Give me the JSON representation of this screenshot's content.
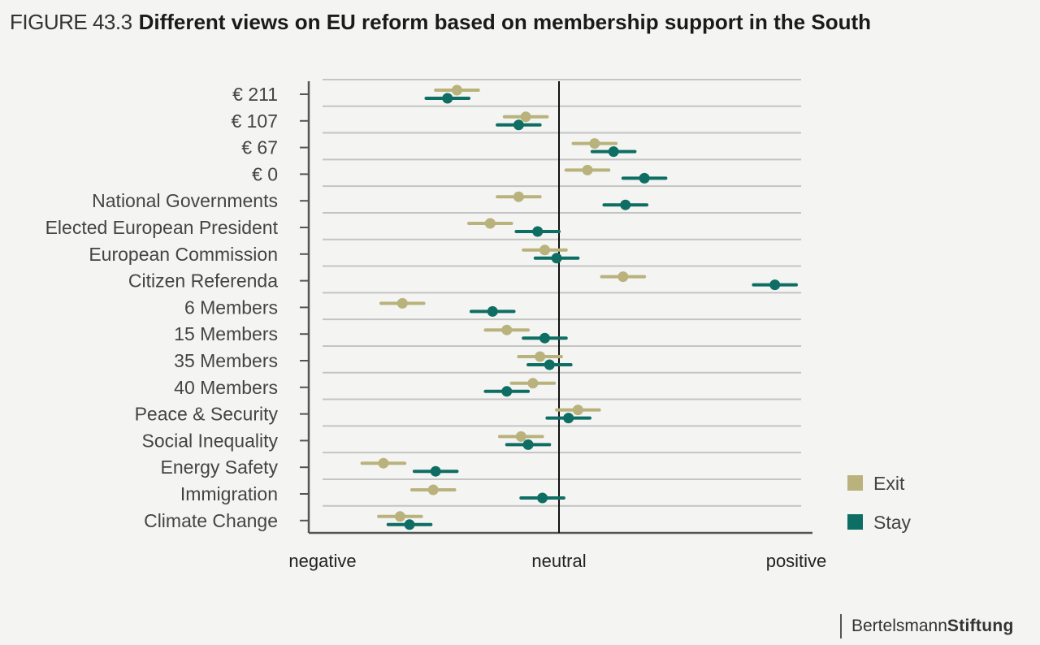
{
  "header": {
    "figure_label": "FIGURE 43.3",
    "title": "Different views on EU reform based on membership support in the South"
  },
  "brand": {
    "part1": "Bertelsmann",
    "part2": "Stiftung"
  },
  "colors": {
    "exit": "#bab27c",
    "stay": "#0f6e64",
    "grid": "#c4c4c4",
    "axis": "#555555"
  },
  "chart_data": {
    "type": "scatter",
    "categories": [
      "€ 211",
      "€ 107",
      "€ 67",
      "€ 0",
      "National Governments",
      "Elected European President",
      "European Commission",
      "Citizen Referenda",
      "6 Members",
      "15 Members",
      "35 Members",
      "40 Members",
      "Peace & Security",
      "Social Inequality",
      "Energy Safety",
      "Immigration",
      "Climate Change"
    ],
    "x_tick_labels": [
      "negative",
      "neutral",
      "positive"
    ],
    "xlim": [
      -1,
      1
    ],
    "series": [
      {
        "name": "Exit",
        "values": [
          -0.43,
          -0.14,
          0.15,
          0.12,
          -0.17,
          -0.29,
          -0.06,
          0.27,
          -0.66,
          -0.22,
          -0.08,
          -0.11,
          0.08,
          -0.16,
          -0.74,
          -0.53,
          -0.67
        ],
        "err": 0.09
      },
      {
        "name": "Stay",
        "values": [
          -0.47,
          -0.17,
          0.23,
          0.36,
          0.28,
          -0.09,
          -0.01,
          0.91,
          -0.28,
          -0.06,
          -0.04,
          -0.22,
          0.04,
          -0.13,
          -0.52,
          -0.07,
          -0.63
        ],
        "err": 0.09
      }
    ],
    "grid": true,
    "legend_position": "right-bottom"
  }
}
